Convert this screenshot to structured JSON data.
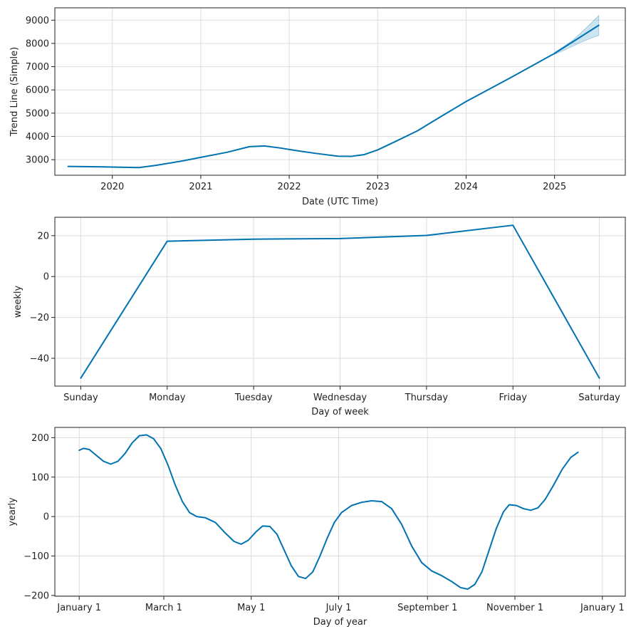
{
  "figure": {
    "title": ""
  },
  "chart_data": [
    {
      "type": "line",
      "title": "",
      "xlabel": "Date (UTC Time)",
      "ylabel": "Trend Line (Simple)",
      "x_ticks": [
        "2020",
        "2021",
        "2022",
        "2023",
        "2024",
        "2025"
      ],
      "x_tick_values": [
        2020,
        2021,
        2022,
        2023,
        2024,
        2025
      ],
      "y_ticks": [
        "3000",
        "4000",
        "5000",
        "6000",
        "7000",
        "8000",
        "9000"
      ],
      "y_tick_values": [
        3000,
        4000,
        5000,
        6000,
        7000,
        8000,
        9000
      ],
      "xlim": [
        2019.35,
        2025.8
      ],
      "ylim": [
        2330,
        9530
      ],
      "grid": true,
      "line_color": "#0072b2",
      "band_color": "#0072b2",
      "series": [
        {
          "values": [
            [
              2019.5,
              2710
            ],
            [
              2019.9,
              2690
            ],
            [
              2020.3,
              2660
            ],
            [
              2020.5,
              2760
            ],
            [
              2020.8,
              2950
            ],
            [
              2021.0,
              3100
            ],
            [
              2021.3,
              3320
            ],
            [
              2021.55,
              3560
            ],
            [
              2021.72,
              3590
            ],
            [
              2021.9,
              3500
            ],
            [
              2022.1,
              3380
            ],
            [
              2022.3,
              3270
            ],
            [
              2022.55,
              3150
            ],
            [
              2022.7,
              3140
            ],
            [
              2022.85,
              3220
            ],
            [
              2023.0,
              3420
            ],
            [
              2023.2,
              3780
            ],
            [
              2023.45,
              4240
            ],
            [
              2023.7,
              4820
            ],
            [
              2024.0,
              5500
            ],
            [
              2024.5,
              6520
            ],
            [
              2025.0,
              7570
            ],
            [
              2025.5,
              8780
            ]
          ],
          "band": [
            [
              2025.0,
              7530,
              7610
            ],
            [
              2025.1,
              7690,
              7860
            ],
            [
              2025.2,
              7870,
              8120
            ],
            [
              2025.3,
              8050,
              8460
            ],
            [
              2025.4,
              8210,
              8820
            ],
            [
              2025.5,
              8340,
              9200
            ]
          ]
        }
      ]
    },
    {
      "type": "line",
      "title": "",
      "xlabel": "Day of week",
      "ylabel": "weekly",
      "categories": [
        "Sunday",
        "Monday",
        "Tuesday",
        "Wednesday",
        "Thursday",
        "Friday",
        "Saturday"
      ],
      "y_ticks": [
        "20",
        "0",
        "−20",
        "−40"
      ],
      "y_tick_values": [
        20,
        0,
        -20,
        -40
      ],
      "xlim": [
        -0.3,
        6.3
      ],
      "ylim": [
        -53.6,
        29
      ],
      "grid": true,
      "line_color": "#0072b2",
      "series": [
        {
          "values": [
            -49.7,
            17.3,
            18.3,
            18.6,
            20.1,
            25.1,
            -49.7
          ]
        }
      ]
    },
    {
      "type": "line",
      "title": "",
      "xlabel": "Day of year",
      "ylabel": "yearly",
      "x_ticks": [
        "January 1",
        "March 1",
        "May 1",
        "July 1",
        "September 1",
        "November 1",
        "January 1"
      ],
      "x_tick_values": [
        0,
        59,
        120,
        181,
        243,
        304,
        365
      ],
      "y_ticks": [
        "200",
        "100",
        "0",
        "−100",
        "−200"
      ],
      "y_tick_values": [
        200,
        100,
        0,
        -100,
        -200
      ],
      "xlim": [
        -17,
        381
      ],
      "ylim": [
        -202,
        226
      ],
      "grid": true,
      "line_color": "#0072b2",
      "series": [
        {
          "values": [
            [
              0,
              168
            ],
            [
              3,
              173
            ],
            [
              7,
              170
            ],
            [
              12,
              155
            ],
            [
              17,
              140
            ],
            [
              22,
              133
            ],
            [
              27,
              140
            ],
            [
              32,
              160
            ],
            [
              37,
              187
            ],
            [
              42,
              205
            ],
            [
              47,
              207
            ],
            [
              52,
              197
            ],
            [
              57,
              172
            ],
            [
              62,
              130
            ],
            [
              67,
              80
            ],
            [
              72,
              38
            ],
            [
              77,
              10
            ],
            [
              82,
              0
            ],
            [
              88,
              -3
            ],
            [
              95,
              -15
            ],
            [
              102,
              -42
            ],
            [
              108,
              -63
            ],
            [
              113,
              -70
            ],
            [
              118,
              -60
            ],
            [
              123,
              -40
            ],
            [
              128,
              -24
            ],
            [
              133,
              -25
            ],
            [
              138,
              -45
            ],
            [
              143,
              -85
            ],
            [
              148,
              -125
            ],
            [
              153,
              -152
            ],
            [
              158,
              -157
            ],
            [
              163,
              -140
            ],
            [
              168,
              -100
            ],
            [
              173,
              -55
            ],
            [
              178,
              -15
            ],
            [
              183,
              10
            ],
            [
              190,
              28
            ],
            [
              197,
              36
            ],
            [
              204,
              40
            ],
            [
              211,
              38
            ],
            [
              218,
              20
            ],
            [
              225,
              -20
            ],
            [
              232,
              -75
            ],
            [
              239,
              -117
            ],
            [
              246,
              -138
            ],
            [
              253,
              -150
            ],
            [
              260,
              -165
            ],
            [
              266,
              -180
            ],
            [
              271,
              -184
            ],
            [
              276,
              -172
            ],
            [
              281,
              -140
            ],
            [
              286,
              -85
            ],
            [
              291,
              -30
            ],
            [
              296,
              12
            ],
            [
              300,
              30
            ],
            [
              305,
              28
            ],
            [
              310,
              20
            ],
            [
              315,
              16
            ],
            [
              320,
              22
            ],
            [
              325,
              43
            ],
            [
              331,
              80
            ],
            [
              337,
              120
            ],
            [
              343,
              150
            ],
            [
              348,
              163
            ]
          ]
        }
      ]
    }
  ]
}
